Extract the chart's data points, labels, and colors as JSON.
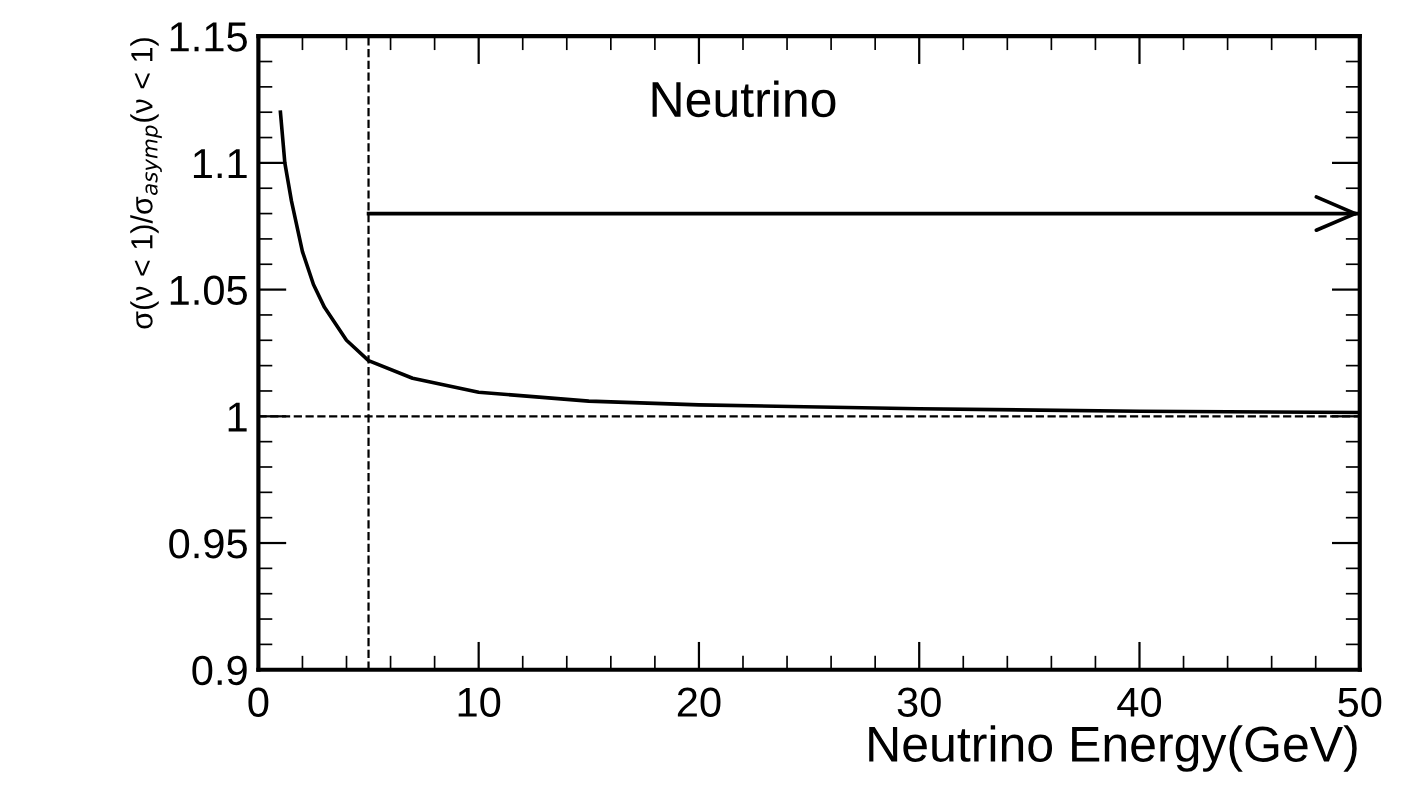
{
  "chart_data": {
    "type": "line",
    "xlabel": "Neutrino Energy(GeV)",
    "ylabel": "σ(ν < 1)/σ$_{asymp}$(ν < 1)",
    "annotations": [
      "Neutrino"
    ],
    "xlim": [
      0,
      50
    ],
    "xticks": [
      0,
      10,
      20,
      30,
      40,
      50
    ],
    "ylim": [
      0.9,
      1.15
    ],
    "yticks": [
      0.9,
      0.95,
      1,
      1.05,
      1.1,
      1.15
    ],
    "series": [
      {
        "color": "#000000",
        "x": [
          1,
          1.2,
          1.5,
          2,
          2.5,
          3,
          4,
          5,
          7,
          10,
          15,
          20,
          30,
          40,
          50
        ],
        "values": [
          1.12,
          1.1,
          1.085,
          1.065,
          1.052,
          1.043,
          1.03,
          1.022,
          1.015,
          1.0095,
          1.006,
          1.0045,
          1.003,
          1.002,
          1.0015
        ]
      },
      {
        "color": "#000000",
        "x": [
          5,
          50
        ],
        "values": [
          1.08,
          1.08
        ]
      }
    ],
    "ref_lines": [
      {
        "axis": "y",
        "value": 1,
        "line_style": "dashed"
      },
      {
        "axis": "x",
        "value": 5,
        "line_style": "dashed"
      }
    ],
    "grid": false,
    "legend": false,
    "line_style": "solid",
    "marker": "none"
  }
}
